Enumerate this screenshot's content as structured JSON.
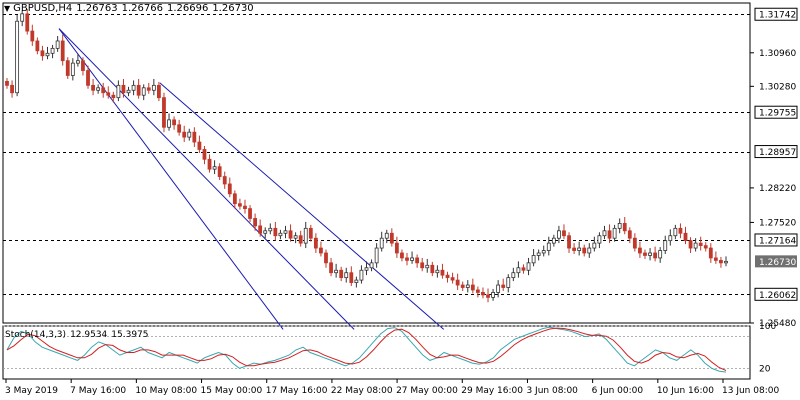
{
  "header": {
    "symbol": "GBPUSD,H4",
    "open": "1.26763",
    "high": "1.26766",
    "low": "1.26696",
    "close": "1.26730"
  },
  "stoch": {
    "label": "Stoch(14,3,3)",
    "main": "12.9534",
    "signal": "15.3975"
  },
  "colors": {
    "bull": "#333333",
    "bear": "#c0392b",
    "channel": "#1b1bb0",
    "stoch_main": "#3aa7b0",
    "stoch_signal": "#d42020"
  },
  "chart_data": {
    "type": "candlestick",
    "price_ylim": [
      1.2548,
      1.3197
    ],
    "stoch_ylim": [
      0,
      100
    ],
    "price_ticks": [
      "1.30960",
      "1.30280",
      "1.28220",
      "1.27520",
      "1.25480"
    ],
    "stoch_ticks": [
      "100",
      "20"
    ],
    "time_labels": [
      "3 May 2019",
      "7 May 16:00",
      "10 May 08:00",
      "15 May 00:00",
      "17 May 16:00",
      "22 May 08:00",
      "27 May 00:00",
      "29 May 16:00",
      "3 Jun 08:00",
      "6 Jun 00:00",
      "10 Jun 16:00",
      "13 Jun 08:00"
    ],
    "levels": [
      {
        "value": 1.31742,
        "label": "1.31742"
      },
      {
        "value": 1.29755,
        "label": "1.29755"
      },
      {
        "value": 1.28957,
        "label": "1.28957"
      },
      {
        "value": 1.27164,
        "label": "1.27164"
      },
      {
        "value": 1.26062,
        "label": "1.26062"
      }
    ],
    "current_price": {
      "value": 1.2673,
      "label": "1.26730"
    },
    "channels": [
      {
        "start": [
          0.075,
          1.3145
        ],
        "end": [
          0.47,
          1.2535
        ]
      },
      {
        "start": [
          0.075,
          1.3145
        ],
        "end": [
          0.375,
          1.2535
        ]
      },
      {
        "start": [
          0.21,
          1.3035
        ],
        "end": [
          0.59,
          1.2535
        ]
      }
    ],
    "closes": [
      1.303,
      1.3015,
      1.316,
      1.3175,
      1.314,
      1.312,
      1.31,
      1.309,
      1.3095,
      1.3105,
      1.312,
      1.308,
      1.305,
      1.3075,
      1.308,
      1.306,
      1.303,
      1.302,
      1.3025,
      1.3015,
      1.301,
      1.3005,
      1.303,
      1.3015,
      1.302,
      1.303,
      1.301,
      1.3025,
      1.302,
      1.303,
      1.3005,
      1.2945,
      1.296,
      1.295,
      1.2935,
      1.2925,
      1.2935,
      1.2915,
      1.29,
      1.288,
      1.286,
      1.2865,
      1.2845,
      1.283,
      1.281,
      1.279,
      1.2785,
      1.278,
      1.276,
      1.2745,
      1.273,
      1.2735,
      1.274,
      1.2725,
      1.273,
      1.2735,
      1.272,
      1.2725,
      1.271,
      1.274,
      1.272,
      1.27,
      1.269,
      1.267,
      1.265,
      1.2655,
      1.264,
      1.265,
      1.263,
      1.2635,
      1.2655,
      1.266,
      1.267,
      1.27,
      1.272,
      1.273,
      1.271,
      1.269,
      1.268,
      1.2675,
      1.268,
      1.267,
      1.266,
      1.2665,
      1.265,
      1.2655,
      1.2645,
      1.264,
      1.2635,
      1.2625,
      1.262,
      1.2625,
      1.2615,
      1.261,
      1.2605,
      1.26,
      1.261,
      1.2625,
      1.262,
      1.264,
      1.265,
      1.266,
      1.2655,
      1.267,
      1.2685,
      1.269,
      1.2695,
      1.271,
      1.272,
      1.2735,
      1.2725,
      1.27,
      1.2695,
      1.27,
      1.269,
      1.27,
      1.271,
      1.2725,
      1.2735,
      1.272,
      1.274,
      1.275,
      1.2735,
      1.272,
      1.27,
      1.269,
      1.2685,
      1.269,
      1.268,
      1.2695,
      1.2715,
      1.2725,
      1.274,
      1.273,
      1.2715,
      1.27,
      1.271,
      1.2705,
      1.27,
      1.268,
      1.2675,
      1.267,
      1.2673
    ],
    "stoch_main": [
      55,
      78,
      90,
      85,
      70,
      60,
      55,
      50,
      45,
      40,
      35,
      45,
      60,
      70,
      65,
      55,
      45,
      50,
      55,
      60,
      50,
      45,
      40,
      50,
      45,
      40,
      35,
      30,
      40,
      45,
      50,
      45,
      30,
      20,
      25,
      30,
      28,
      32,
      35,
      40,
      45,
      55,
      60,
      50,
      45,
      40,
      35,
      30,
      25,
      30,
      40,
      55,
      70,
      85,
      95,
      97,
      90,
      75,
      60,
      45,
      35,
      40,
      50,
      45,
      40,
      35,
      30,
      28,
      32,
      40,
      55,
      65,
      75,
      80,
      85,
      90,
      95,
      98,
      95,
      93,
      90,
      85,
      80,
      82,
      85,
      75,
      60,
      45,
      30,
      25,
      35,
      45,
      55,
      50,
      40,
      35,
      45,
      55,
      45,
      30,
      20,
      15,
      13
    ]
  }
}
